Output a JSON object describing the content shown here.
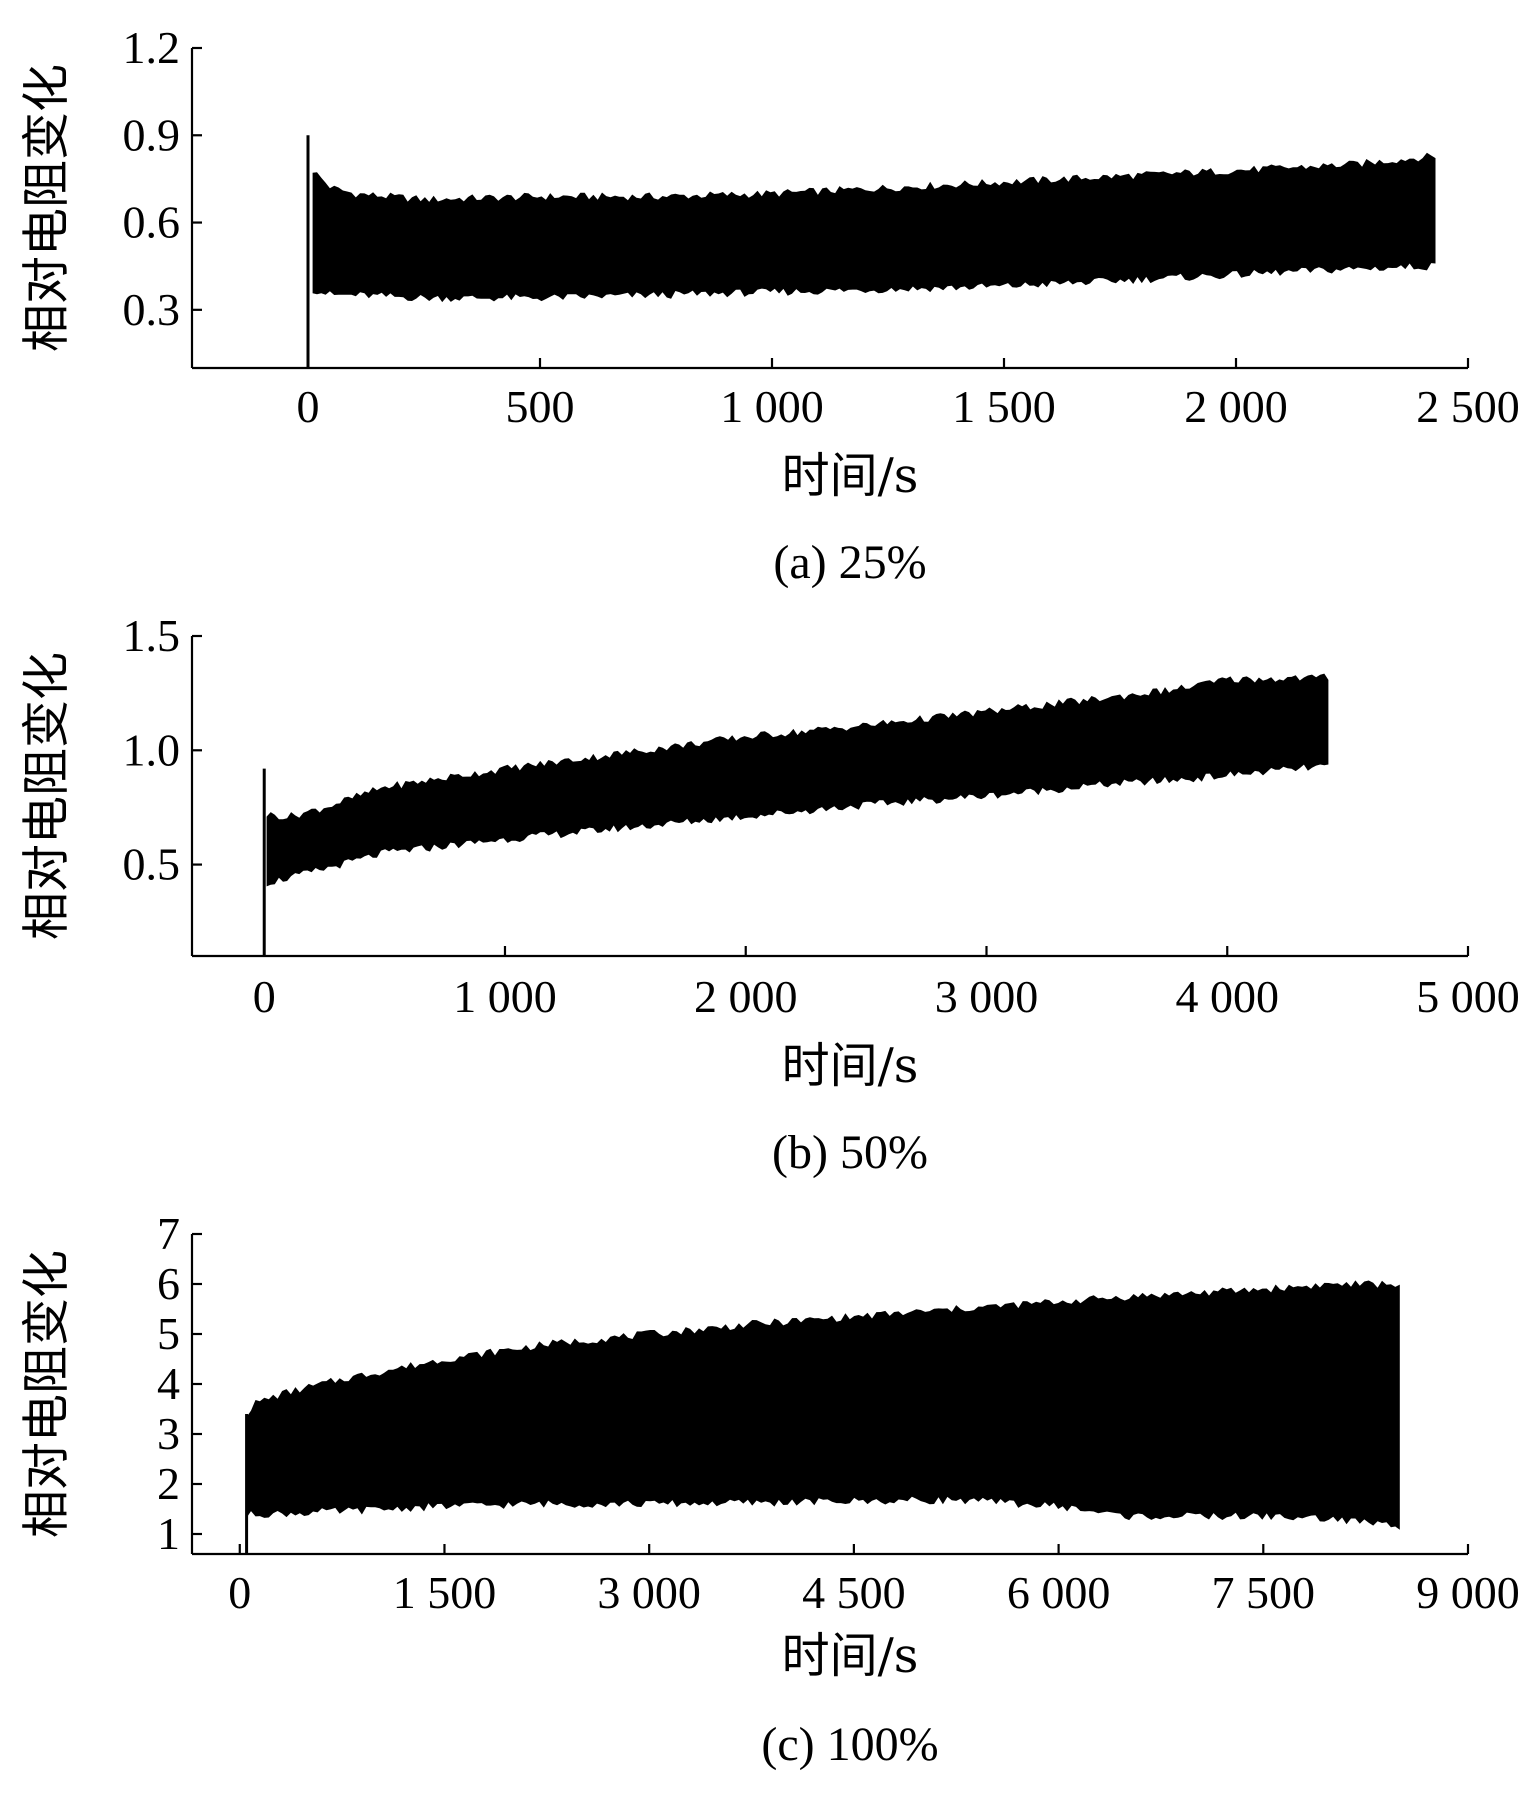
{
  "chart_data": [
    {
      "type": "area",
      "caption": "(a) 25%",
      "xlabel": "时间/s",
      "ylabel": "相对电阻变化",
      "xlim": [
        -250,
        2500
      ],
      "ylim": [
        0.1,
        1.2
      ],
      "xticks": [
        0,
        500,
        1000,
        1500,
        2000,
        2500
      ],
      "xtick_labels": [
        "0",
        "500",
        "1 000",
        "1 500",
        "2 000",
        "2 500"
      ],
      "yticks": [
        0.3,
        0.6,
        0.9,
        1.2
      ],
      "ytick_labels": [
        "0.3",
        "0.6",
        "0.9",
        "1.2"
      ],
      "grid": false,
      "spike": {
        "x": 0,
        "y_low": 0.1,
        "y_high": 0.9
      },
      "series": [
        {
          "x": [
            10,
            50,
            100,
            250,
            500,
            750,
            1000,
            1250,
            1500,
            1750,
            2000,
            2250,
            2430
          ],
          "upper": [
            0.78,
            0.72,
            0.7,
            0.68,
            0.69,
            0.69,
            0.7,
            0.72,
            0.74,
            0.76,
            0.78,
            0.8,
            0.83
          ],
          "lower": [
            0.37,
            0.35,
            0.35,
            0.34,
            0.34,
            0.35,
            0.36,
            0.37,
            0.38,
            0.4,
            0.42,
            0.44,
            0.45
          ]
        }
      ]
    },
    {
      "type": "area",
      "caption": "(b) 50%",
      "xlabel": "时间/s",
      "ylabel": "相对电阻变化",
      "xlim": [
        -300,
        5000
      ],
      "ylim": [
        0.1,
        1.5
      ],
      "xticks": [
        0,
        1000,
        2000,
        3000,
        4000,
        5000
      ],
      "xtick_labels": [
        "0",
        "1 000",
        "2 000",
        "3 000",
        "4 000",
        "5 000"
      ],
      "yticks": [
        0.5,
        1.0,
        1.5
      ],
      "ytick_labels": [
        "0.5",
        "1.0",
        "1.5"
      ],
      "grid": false,
      "spike": {
        "x": 0,
        "y_low": 0.1,
        "y_high": 0.92
      },
      "series": [
        {
          "x": [
            10,
            100,
            250,
            500,
            750,
            1000,
            1500,
            2000,
            2500,
            3000,
            3500,
            3800,
            4000,
            4420
          ],
          "upper": [
            0.72,
            0.71,
            0.75,
            0.84,
            0.88,
            0.92,
            0.99,
            1.06,
            1.11,
            1.17,
            1.23,
            1.27,
            1.31,
            1.32
          ],
          "lower": [
            0.42,
            0.44,
            0.48,
            0.55,
            0.58,
            0.61,
            0.66,
            0.71,
            0.76,
            0.8,
            0.85,
            0.87,
            0.89,
            0.93
          ]
        }
      ]
    },
    {
      "type": "area",
      "caption": "(c) 100%",
      "xlabel": "时间/s",
      "ylabel": "相对电阻变化",
      "xlim": [
        -350,
        9000
      ],
      "ylim": [
        0.6,
        7
      ],
      "xticks": [
        0,
        1500,
        3000,
        4500,
        6000,
        7500,
        9000
      ],
      "xtick_labels": [
        "0",
        "1 500",
        "3 000",
        "4 500",
        "6 000",
        "7 500",
        "9 000"
      ],
      "yticks": [
        1,
        2,
        3,
        4,
        5,
        6,
        7
      ],
      "ytick_labels": [
        "1",
        "2",
        "3",
        "4",
        "5",
        "6",
        "7"
      ],
      "grid": false,
      "spike": {
        "x": 50,
        "y_low": 0.6,
        "y_high": 3.4
      },
      "series": [
        {
          "x": [
            50,
            100,
            300,
            750,
            1500,
            2250,
            3000,
            3750,
            4500,
            5250,
            6000,
            6500,
            7500,
            8000,
            8500
          ],
          "upper": [
            3.4,
            3.6,
            3.8,
            4.1,
            4.5,
            4.8,
            5.0,
            5.2,
            5.35,
            5.5,
            5.65,
            5.75,
            5.9,
            6.0,
            6.0
          ],
          "lower": [
            1.35,
            1.4,
            1.4,
            1.45,
            1.55,
            1.6,
            1.6,
            1.62,
            1.65,
            1.68,
            1.55,
            1.35,
            1.35,
            1.3,
            1.15
          ]
        }
      ]
    }
  ]
}
